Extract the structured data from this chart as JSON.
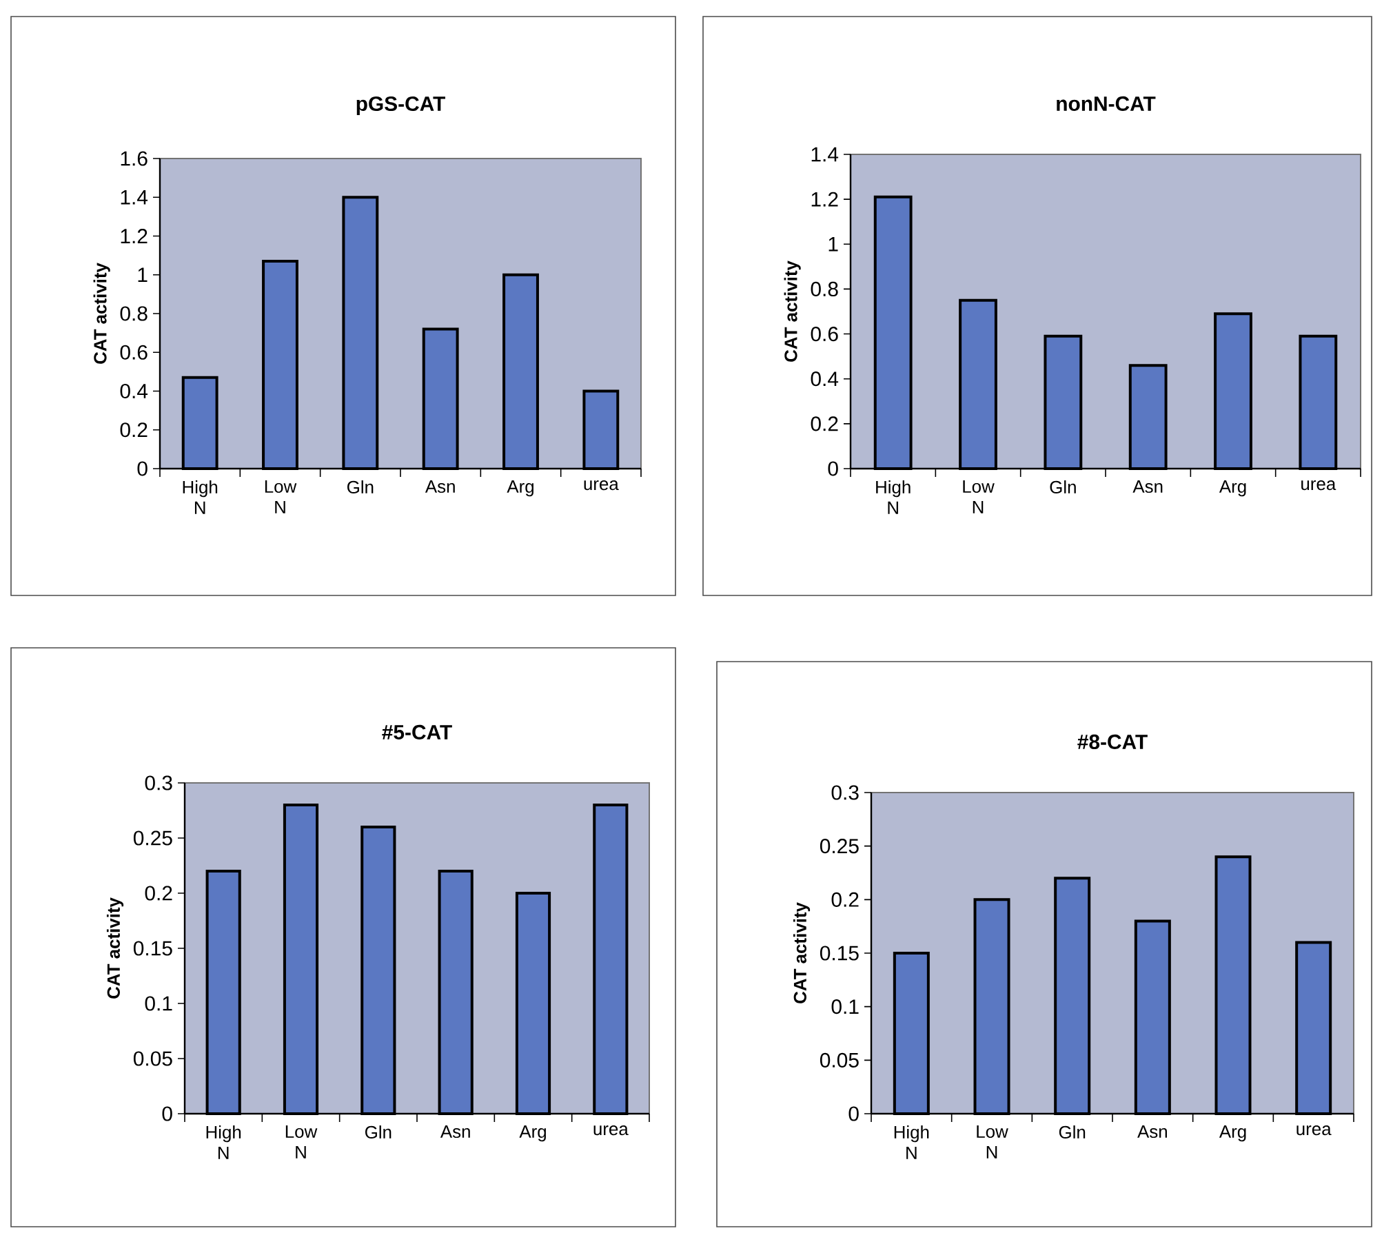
{
  "chart_data": [
    {
      "type": "bar",
      "title": "pGS-CAT",
      "ylabel": "CAT activity",
      "categories": [
        "High N",
        "Low N",
        "Gln",
        "Asn",
        "Arg",
        "urea"
      ],
      "values": [
        0.47,
        1.07,
        1.4,
        0.72,
        1.0,
        0.4
      ],
      "color": "#5b78c2",
      "ylim": [
        0,
        1.6
      ],
      "yticks": [
        0,
        0.2,
        0.4,
        0.6,
        0.8,
        1,
        1.2,
        1.4,
        1.6
      ]
    },
    {
      "type": "bar",
      "title": "nonN-CAT",
      "ylabel": "CAT activity",
      "categories": [
        "High N",
        "Low N",
        "Gln",
        "Asn",
        "Arg",
        "urea"
      ],
      "values": [
        1.21,
        0.75,
        0.59,
        0.46,
        0.69,
        0.59
      ],
      "color": "#5b78c2",
      "ylim": [
        0,
        1.4
      ],
      "yticks": [
        0,
        0.2,
        0.4,
        0.6,
        0.8,
        1,
        1.2,
        1.4
      ]
    },
    {
      "type": "bar",
      "title": "#5-CAT",
      "ylabel": "CAT activity",
      "categories": [
        "High N",
        "Low N",
        "Gln",
        "Asn",
        "Arg",
        "urea"
      ],
      "values": [
        0.22,
        0.28,
        0.26,
        0.22,
        0.2,
        0.28
      ],
      "color": "#5b78c2",
      "ylim": [
        0,
        0.3
      ],
      "yticks": [
        0,
        0.05,
        0.1,
        0.15,
        0.2,
        0.25,
        0.3
      ]
    },
    {
      "type": "bar",
      "title": "#8-CAT",
      "ylabel": "CAT activity",
      "categories": [
        "High N",
        "Low N",
        "Gln",
        "Asn",
        "Arg",
        "urea"
      ],
      "values": [
        0.15,
        0.2,
        0.22,
        0.18,
        0.24,
        0.16
      ],
      "color": "#5b78c2",
      "ylim": [
        0,
        0.3
      ],
      "yticks": [
        0,
        0.05,
        0.1,
        0.15,
        0.2,
        0.25,
        0.3
      ]
    }
  ]
}
